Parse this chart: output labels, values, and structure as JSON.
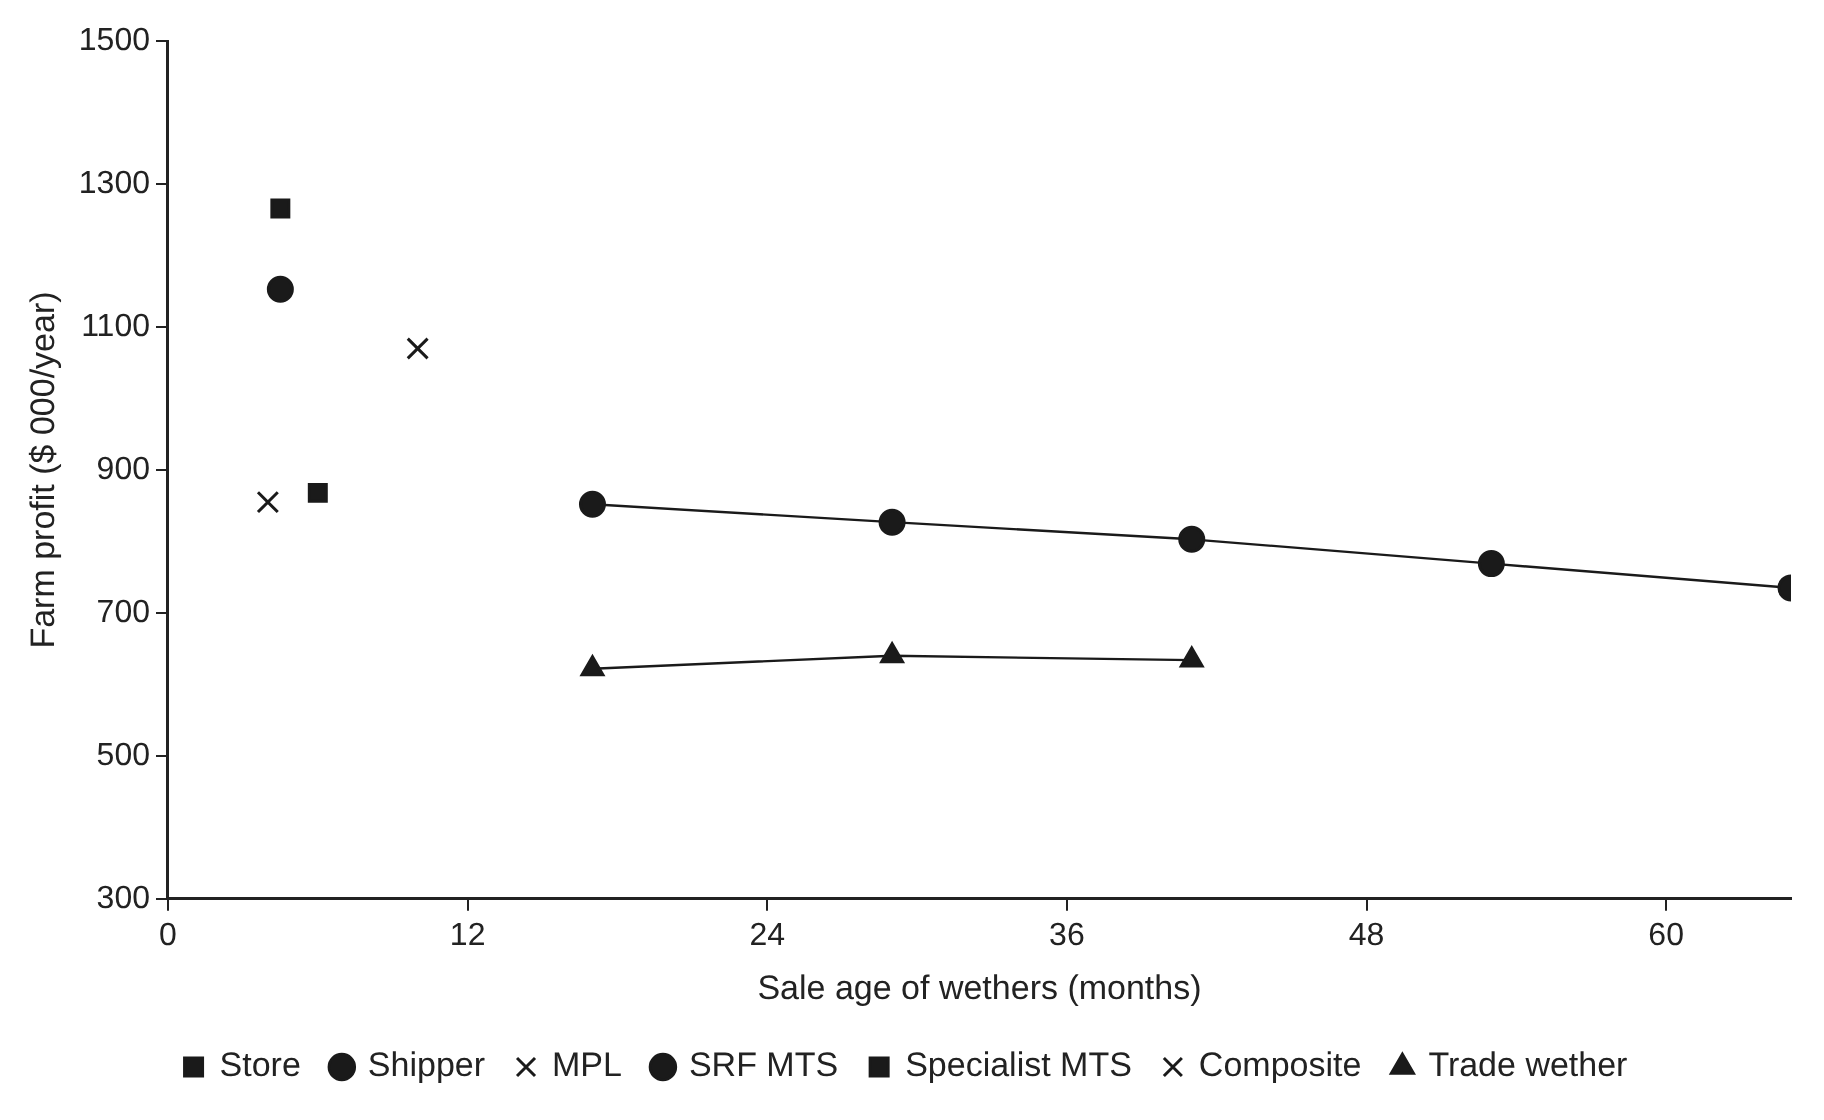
{
  "chart_data": {
    "type": "line",
    "xlabel": "Sale age of wethers (months)",
    "ylabel": "Farm profit ($ 000/year)",
    "xlim": [
      0,
      65
    ],
    "xticks": [
      0,
      12,
      24,
      36,
      48,
      60
    ],
    "ylim": [
      300,
      1500
    ],
    "yticks": [
      300,
      500,
      700,
      900,
      1100,
      1300,
      1500
    ],
    "grid": false,
    "legend": "bottom",
    "series": [
      {
        "name": "Store",
        "type": "scatter",
        "marker": "square",
        "color": "#1a1a1a",
        "x": [
          6
        ],
        "values": [
          868
        ]
      },
      {
        "name": "Shipper",
        "type": "line",
        "marker": "circle",
        "color": "#1a1a1a",
        "x": [
          17,
          29,
          41,
          53,
          65
        ],
        "values": [
          852,
          827,
          803,
          769,
          735
        ]
      },
      {
        "name": "MPL",
        "type": "scatter",
        "marker": "cross",
        "color": "#1a1a1a",
        "x": [
          10
        ],
        "values": [
          1070
        ]
      },
      {
        "name": "SRF MTS",
        "type": "scatter",
        "marker": "circle",
        "color": "#1a1a1a",
        "x": [
          4.5
        ],
        "values": [
          1153
        ]
      },
      {
        "name": "Specialist MTS",
        "type": "scatter",
        "marker": "square",
        "color": "#1a1a1a",
        "x": [
          4.5
        ],
        "values": [
          1266
        ]
      },
      {
        "name": "Composite",
        "type": "scatter",
        "marker": "cross",
        "color": "#1a1a1a",
        "x": [
          4
        ],
        "values": [
          855
        ]
      },
      {
        "name": "Trade wether",
        "type": "line",
        "marker": "triangle",
        "color": "#1a1a1a",
        "x": [
          17,
          29,
          41
        ],
        "values": [
          622,
          640,
          634
        ]
      }
    ]
  }
}
